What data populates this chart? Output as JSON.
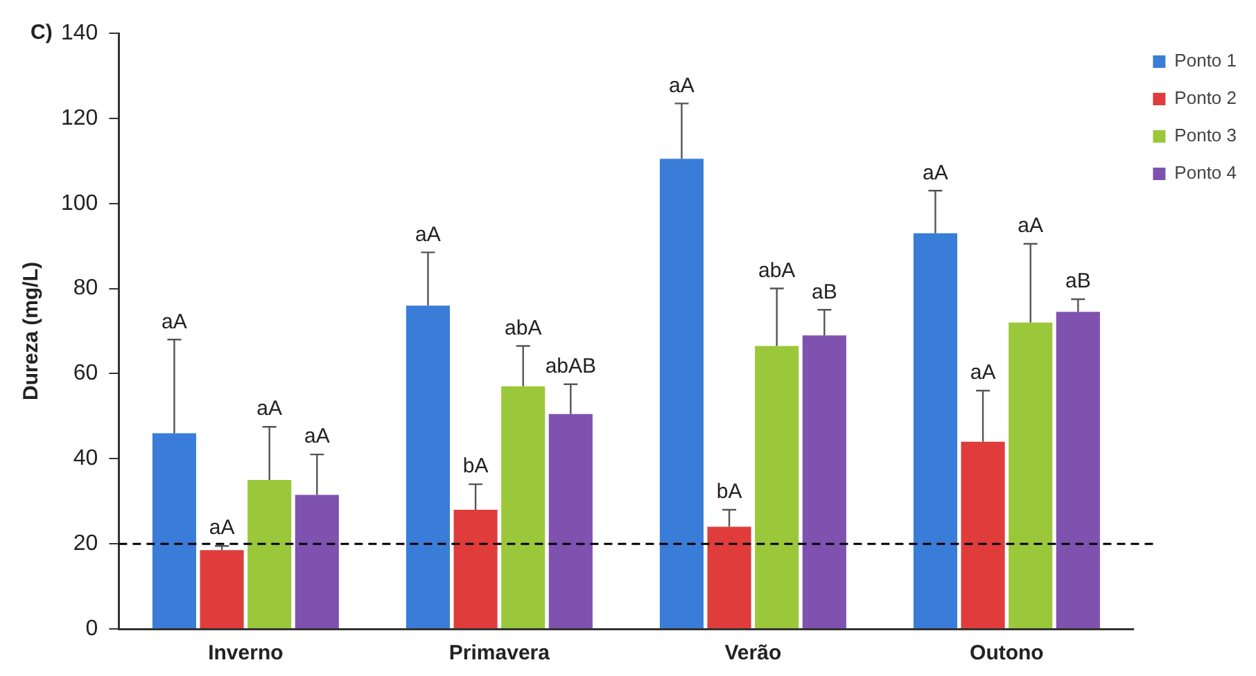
{
  "chart_data": {
    "type": "bar",
    "ylabel": "Dureza (mg/L)",
    "categories": [
      "Inverno",
      "Primavera",
      "Verão",
      "Outono"
    ],
    "series": [
      {
        "name": "Ponto 1",
        "color": "#3a7dd8",
        "values": [
          46,
          76,
          110.5,
          93
        ],
        "errors": [
          [
            46,
            68
          ],
          [
            76,
            88.5
          ],
          [
            110.5,
            123.5
          ],
          [
            93,
            103
          ]
        ]
      },
      {
        "name": "Ponto 2",
        "color": "#e03c3c",
        "values": [
          18.5,
          28,
          24,
          44
        ],
        "errors": [
          [
            18.5,
            19.5
          ],
          [
            28,
            34
          ],
          [
            24,
            28
          ],
          [
            44,
            56
          ]
        ]
      },
      {
        "name": "Ponto 3",
        "color": "#9bc83a",
        "values": [
          35,
          57,
          66.5,
          72
        ],
        "errors": [
          [
            35,
            47.5
          ],
          [
            57,
            66.5
          ],
          [
            66.5,
            80
          ],
          [
            72,
            90.5
          ]
        ]
      },
      {
        "name": "Ponto 4",
        "color": "#7f52b0",
        "values": [
          31.5,
          50.5,
          69,
          74.5
        ],
        "errors": [
          [
            31.5,
            41
          ],
          [
            50.5,
            57.5
          ],
          [
            69,
            75
          ],
          [
            74.5,
            77.5
          ]
        ]
      }
    ],
    "ylim": [
      0,
      140
    ],
    "yticks": [
      0,
      20,
      40,
      60,
      80,
      100,
      120,
      140
    ],
    "grid": false,
    "legend": "top right",
    "ref_lines": [
      {
        "axis": "y",
        "value": 20,
        "line_style": "dashed",
        "color": "#000000"
      }
    ],
    "annotations": [
      "C)",
      "aA",
      "aA",
      "aA",
      "aA",
      "aA",
      "bA",
      "abA",
      "abAB",
      "aA",
      "bA",
      "abA",
      "aB",
      "aA",
      "aA",
      "aA",
      "aB"
    ]
  }
}
